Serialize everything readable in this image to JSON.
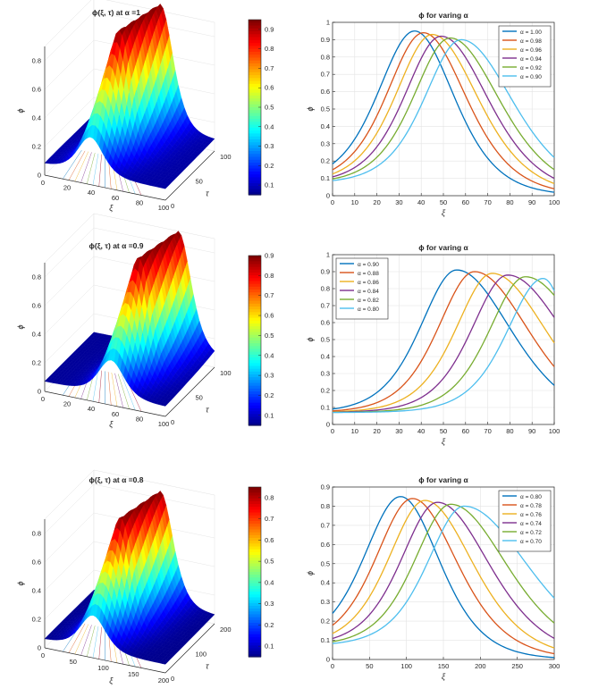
{
  "chart_data": [
    {
      "type": "surface3d",
      "title": "ϕ(ξ, τ) at α =1",
      "xlabel": "ξ",
      "ylabel": "τ",
      "zlabel": "ϕ",
      "xlim": [
        0,
        100
      ],
      "ylim": [
        0,
        100
      ],
      "zlim": [
        0,
        0.95
      ],
      "xticks": [
        "0",
        "20",
        "40",
        "60",
        "80",
        "100"
      ],
      "yticks": [
        "0",
        "50",
        "100"
      ],
      "zticks": [
        "0",
        "0.2",
        "0.4",
        "0.6",
        "0.8"
      ],
      "peak": 0.95,
      "peak_xi_start": 38,
      "peak_xi_end": 55,
      "baseline": 0.08,
      "colorbar": {
        "min": 0.05,
        "max": 0.95,
        "ticks": [
          "0.9",
          "0.8",
          "0.7",
          "0.6",
          "0.5",
          "0.4",
          "0.3",
          "0.2",
          "0.1"
        ]
      }
    },
    {
      "type": "line",
      "title": "ϕ for varing α",
      "xlabel": "ξ",
      "ylabel": "ϕ",
      "xlim": [
        0,
        100
      ],
      "ylim": [
        0,
        1
      ],
      "xticks": [
        "0",
        "10",
        "20",
        "30",
        "40",
        "50",
        "60",
        "70",
        "80",
        "90",
        "100"
      ],
      "yticks": [
        "0",
        "0.1",
        "0.2",
        "0.3",
        "0.4",
        "0.5",
        "0.6",
        "0.7",
        "0.8",
        "0.9",
        "1"
      ],
      "legend_position": "top-right",
      "series": [
        {
          "name": "α = 1.00",
          "color": "#0072BD",
          "peak_x": 37,
          "peak_y": 0.95,
          "end_y": 0.02
        },
        {
          "name": "α = 0.98",
          "color": "#D95319",
          "peak_x": 41,
          "peak_y": 0.94,
          "end_y": 0.04
        },
        {
          "name": "α = 0.96",
          "color": "#EDB120",
          "peak_x": 45,
          "peak_y": 0.93,
          "end_y": 0.07
        },
        {
          "name": "α = 0.94",
          "color": "#7E2F8E",
          "peak_x": 49,
          "peak_y": 0.92,
          "end_y": 0.1
        },
        {
          "name": "α = 0.92",
          "color": "#77AC30",
          "peak_x": 53,
          "peak_y": 0.91,
          "end_y": 0.15
        },
        {
          "name": "α = 0.90",
          "color": "#4DBEEE",
          "peak_x": 58,
          "peak_y": 0.9,
          "end_y": 0.22
        }
      ]
    },
    {
      "type": "surface3d",
      "title": "ϕ(ξ, τ) at α =0.9",
      "xlabel": "ξ",
      "ylabel": "τ",
      "zlabel": "ϕ",
      "xlim": [
        0,
        100
      ],
      "ylim": [
        0,
        100
      ],
      "zlim": [
        0,
        0.9
      ],
      "xticks": [
        "0",
        "20",
        "40",
        "60",
        "80",
        "100"
      ],
      "yticks": [
        "0",
        "50",
        "100"
      ],
      "zticks": [
        "0",
        "0.2",
        "0.4",
        "0.6",
        "0.8"
      ],
      "peak": 0.9,
      "peak_xi_start": 55,
      "peak_xi_end": 70,
      "baseline": 0.07,
      "colorbar": {
        "min": 0.05,
        "max": 0.9,
        "ticks": [
          "0.9",
          "0.8",
          "0.7",
          "0.6",
          "0.5",
          "0.4",
          "0.3",
          "0.2",
          "0.1"
        ]
      }
    },
    {
      "type": "line",
      "title": "ϕ for varing α",
      "xlabel": "ξ",
      "ylabel": "ϕ",
      "xlim": [
        0,
        100
      ],
      "ylim": [
        0,
        1
      ],
      "xticks": [
        "0",
        "10",
        "20",
        "30",
        "40",
        "50",
        "60",
        "70",
        "80",
        "90",
        "100"
      ],
      "yticks": [
        "0",
        "0.1",
        "0.2",
        "0.3",
        "0.4",
        "0.5",
        "0.6",
        "0.7",
        "0.8",
        "0.9",
        "1"
      ],
      "legend_position": "top-left",
      "series": [
        {
          "name": "α = 0.90",
          "color": "#0072BD",
          "peak_x": 56,
          "peak_y": 0.91,
          "end_y": 0.23
        },
        {
          "name": "α = 0.88",
          "color": "#D95319",
          "peak_x": 64,
          "peak_y": 0.9,
          "end_y": 0.34
        },
        {
          "name": "α = 0.86",
          "color": "#EDB120",
          "peak_x": 72,
          "peak_y": 0.89,
          "end_y": 0.48
        },
        {
          "name": "α = 0.84",
          "color": "#7E2F8E",
          "peak_x": 79,
          "peak_y": 0.88,
          "end_y": 0.63
        },
        {
          "name": "α = 0.82",
          "color": "#77AC30",
          "peak_x": 87,
          "peak_y": 0.87,
          "end_y": 0.76
        },
        {
          "name": "α = 0.80",
          "color": "#4DBEEE",
          "peak_x": 95,
          "peak_y": 0.86,
          "end_y": 0.84
        }
      ]
    },
    {
      "type": "surface3d",
      "title": "ϕ(ξ, τ) at α =0.8",
      "xlabel": "ξ",
      "ylabel": "τ",
      "zlabel": "ϕ",
      "xlim": [
        0,
        200
      ],
      "ylim": [
        0,
        200
      ],
      "zlim": [
        0,
        0.85
      ],
      "xticks": [
        "0",
        "50",
        "100",
        "150",
        "200"
      ],
      "yticks": [
        "0",
        "100",
        "200"
      ],
      "zticks": [
        "0",
        "0.2",
        "0.4",
        "0.6",
        "0.8"
      ],
      "peak": 0.85,
      "peak_xi_start": 80,
      "peak_xi_end": 110,
      "baseline": 0.06,
      "colorbar": {
        "min": 0.05,
        "max": 0.85,
        "ticks": [
          "0.8",
          "0.7",
          "0.6",
          "0.5",
          "0.4",
          "0.3",
          "0.2",
          "0.1"
        ]
      }
    },
    {
      "type": "line",
      "title": "ϕ for varing α",
      "xlabel": "ξ",
      "ylabel": "ϕ",
      "xlim": [
        0,
        300
      ],
      "ylim": [
        0,
        0.9
      ],
      "xticks": [
        "0",
        "50",
        "100",
        "150",
        "200",
        "250",
        "300"
      ],
      "yticks": [
        "0",
        "0.1",
        "0.2",
        "0.3",
        "0.4",
        "0.5",
        "0.6",
        "0.7",
        "0.8",
        "0.9"
      ],
      "legend_position": "top-right",
      "series": [
        {
          "name": "α = 0.80",
          "color": "#0072BD",
          "peak_x": 92,
          "peak_y": 0.85,
          "end_y": 0.01
        },
        {
          "name": "α = 0.78",
          "color": "#D95319",
          "peak_x": 108,
          "peak_y": 0.84,
          "end_y": 0.03
        },
        {
          "name": "α = 0.76",
          "color": "#EDB120",
          "peak_x": 125,
          "peak_y": 0.83,
          "end_y": 0.06
        },
        {
          "name": "α = 0.74",
          "color": "#7E2F8E",
          "peak_x": 142,
          "peak_y": 0.82,
          "end_y": 0.11
        },
        {
          "name": "α = 0.72",
          "color": "#77AC30",
          "peak_x": 160,
          "peak_y": 0.81,
          "end_y": 0.19
        },
        {
          "name": "α = 0.70",
          "color": "#4DBEEE",
          "peak_x": 178,
          "peak_y": 0.8,
          "end_y": 0.32
        }
      ]
    }
  ]
}
